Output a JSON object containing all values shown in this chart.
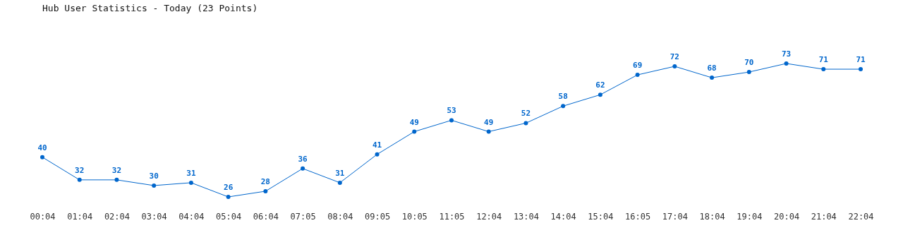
{
  "chart_data": {
    "type": "line",
    "title": "Hub User Statistics - Today (23 Points)",
    "categories": [
      "00:04",
      "01:04",
      "02:04",
      "03:04",
      "04:04",
      "05:04",
      "06:04",
      "07:05",
      "08:04",
      "09:05",
      "10:05",
      "11:05",
      "12:04",
      "13:04",
      "14:04",
      "15:04",
      "16:05",
      "17:04",
      "18:04",
      "19:04",
      "20:04",
      "21:04",
      "22:04"
    ],
    "series": [
      {
        "color": "#0066cc",
        "values": [
          40,
          32,
          32,
          30,
          31,
          26,
          28,
          36,
          31,
          41,
          49,
          53,
          49,
          52,
          58,
          62,
          69,
          72,
          68,
          70,
          73,
          71,
          71
        ]
      }
    ],
    "data_labels": true,
    "marker": "circle",
    "tick_labels": "x"
  }
}
